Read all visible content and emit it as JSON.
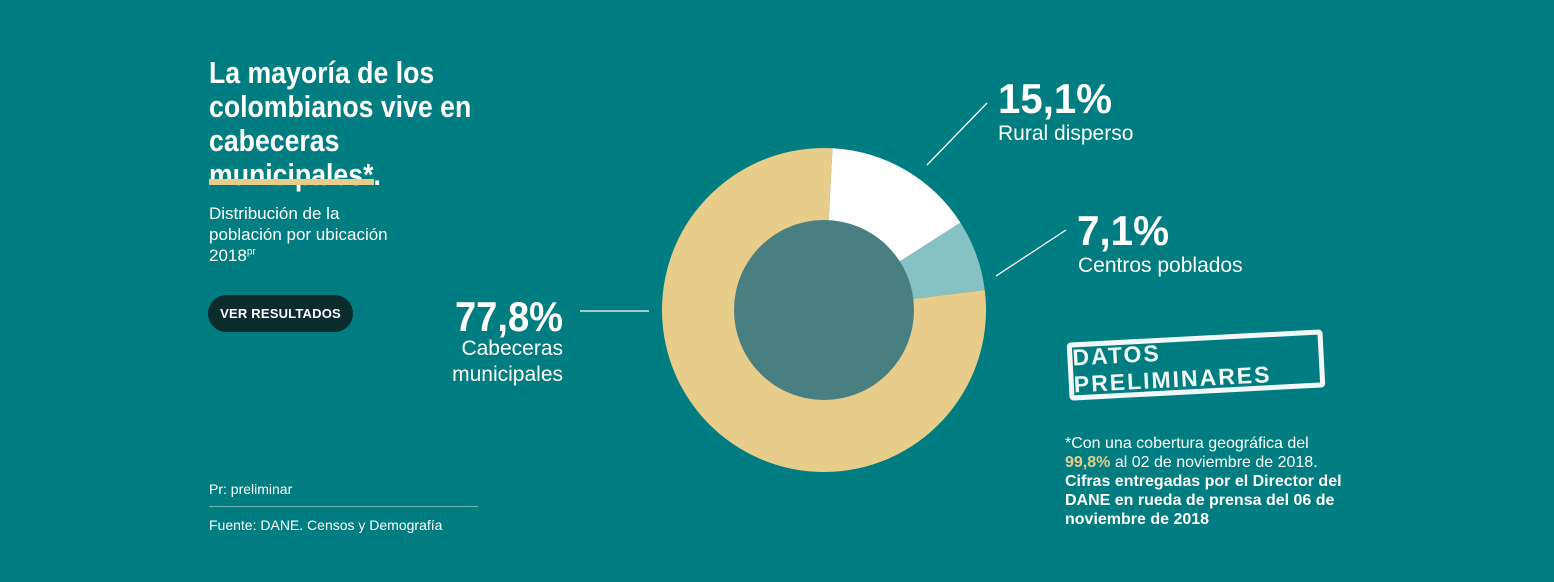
{
  "headline": {
    "line1": "La mayoría de los",
    "line2": "colombianos vive en",
    "line3": "cabeceras municipales*."
  },
  "subtitle": {
    "line1": "Distribución de la",
    "line2": "población por ubicación",
    "year": "2018",
    "year_sup": "pr"
  },
  "button_label": "VER RESULTADOS",
  "notes": {
    "preliminar": "Pr: preliminar",
    "source": "Fuente: DANE. Censos y Demografía"
  },
  "stamp": "DATOS PRELIMINARES",
  "footnote": {
    "part1": "*Con una cobertura geográfica del",
    "highlight": "99,8%",
    "part2": "al 02 de noviembre de 2018.",
    "bold": "Cifras entregadas por el Director del DANE en rueda de prensa del 06 de noviembre de 2018"
  },
  "colors": {
    "background": "#007d80",
    "cabeceras": "#e7cc8a",
    "rural": "#ffffff",
    "centros": "#86c1c4",
    "hole": "#4a7f82",
    "stamp": "#ffffff"
  },
  "chart_data": {
    "type": "pie",
    "style": "donut",
    "series": [
      {
        "name": "Cabeceras municipales",
        "value": 77.8,
        "label": "77,8%",
        "label_lines": [
          "Cabeceras",
          "municipales"
        ]
      },
      {
        "name": "Rural disperso",
        "value": 15.1,
        "label": "15,1%",
        "label_lines": [
          "Rural disperso"
        ]
      },
      {
        "name": "Centros poblados",
        "value": 7.1,
        "label": "7,1%",
        "label_lines": [
          "Centros poblados"
        ]
      }
    ]
  }
}
